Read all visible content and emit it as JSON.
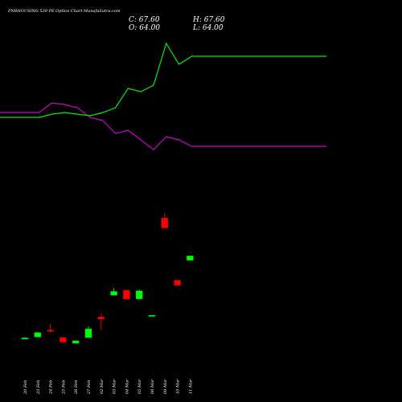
{
  "header": {
    "title": "PNBHOUSING 530  PE Option  Chart MunafaSutra.com",
    "close": "C: 67.60",
    "high": "H: 67.60",
    "open": "O: 64.00",
    "low": "L: 64.00"
  },
  "colors": {
    "background": "#000000",
    "up": "#00ff00",
    "down": "#ff0000",
    "magenta_line": "#cc00cc",
    "green_line": "#00ee00",
    "text": "#ffffff"
  },
  "chart_data": {
    "type": "candlestick",
    "categories": [
      "20 Feb",
      "23 Feb",
      "24 Feb",
      "25 Feb",
      "26 Feb",
      "27 Feb",
      "02 Mar",
      "03 Mar",
      "04 Mar",
      "05 Mar",
      "06 Mar",
      "09 Mar",
      "10 Mar",
      "11 Mar"
    ],
    "candles": [
      {
        "open": 1.5,
        "high": 2.5,
        "low": 1.2,
        "close": 1.8
      },
      {
        "open": 2.5,
        "high": 6.5,
        "low": 2.5,
        "close": 6.0
      },
      {
        "open": 8.0,
        "high": 13.0,
        "low": 6.0,
        "close": 7.0
      },
      {
        "open": 2.0,
        "high": 2.2,
        "low": -2.5,
        "close": -1.5
      },
      {
        "open": -2.5,
        "high": -0.5,
        "low": -3.0,
        "close": -0.5
      },
      {
        "open": 2.0,
        "high": 11.0,
        "low": 2.0,
        "close": 9.0
      },
      {
        "open": 18.5,
        "high": 22.0,
        "low": 8.0,
        "close": 17.0
      },
      {
        "open": 36.0,
        "high": 42.0,
        "low": 36.0,
        "close": 39.0
      },
      {
        "open": 40.0,
        "high": 40.0,
        "low": 33.0,
        "close": 33.0
      },
      {
        "open": 33.0,
        "high": 40.5,
        "low": 33.0,
        "close": 39.5
      },
      {
        "open": 20.0,
        "high": 20.0,
        "low": 20.0,
        "close": 20.0
      },
      {
        "open": 98.0,
        "high": 102.0,
        "low": 90.0,
        "close": 90.0
      },
      {
        "open": 48.0,
        "high": 48.0,
        "low": 44.0,
        "close": 44.0
      },
      {
        "open": 64.0,
        "high": 67.6,
        "low": 64.0,
        "close": 67.6
      }
    ],
    "series": [
      {
        "name": "",
        "color": "#cc00cc",
        "x": [
          0,
          1,
          2,
          3,
          4,
          5,
          6,
          7,
          8,
          9,
          10,
          11,
          12,
          13
        ],
        "values": [
          55.0,
          55.0,
          49.0,
          50.0,
          52.0,
          58.0,
          60.0,
          68.0,
          66.0,
          72.0,
          78.0,
          70.0,
          72.0,
          76.0
        ]
      },
      {
        "name": "",
        "color": "#00ee00",
        "x": [
          0,
          1,
          2,
          3,
          4,
          5,
          6,
          7,
          8,
          9,
          10,
          11,
          12,
          13
        ],
        "values": [
          58.0,
          58.0,
          56.0,
          55.0,
          56.0,
          57.0,
          55.0,
          52.0,
          40.0,
          42.0,
          38.0,
          12.0,
          25.0,
          20.0
        ]
      }
    ]
  }
}
